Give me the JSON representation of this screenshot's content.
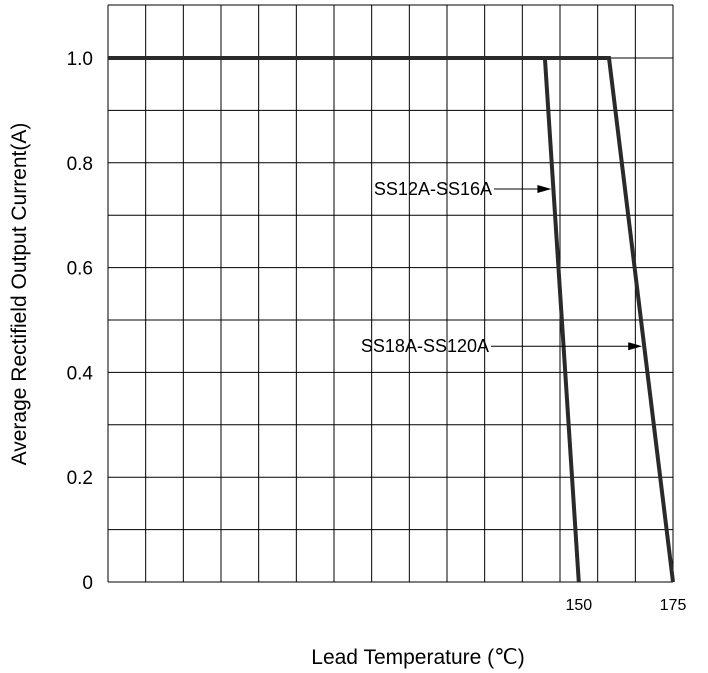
{
  "chart_data": {
    "type": "line",
    "title": "",
    "xlabel": "Lead Temperature (℃)",
    "ylabel": "Average Rectifield Output Current(A)",
    "xlim": [
      25,
      175
    ],
    "ylim": [
      0,
      1.0
    ],
    "grid": true,
    "x_ticks": [
      {
        "value": 150,
        "label": "150"
      },
      {
        "value": 175,
        "label": "175"
      }
    ],
    "y_ticks": [
      {
        "value": 0,
        "label": "0"
      },
      {
        "value": 0.2,
        "label": "0.2"
      },
      {
        "value": 0.4,
        "label": "0.4"
      },
      {
        "value": 0.6,
        "label": "0.6"
      },
      {
        "value": 0.8,
        "label": "0.8"
      },
      {
        "value": 1.0,
        "label": "1.0"
      }
    ],
    "series": [
      {
        "label": "SS12A-SS16A",
        "x": [
          25,
          141,
          150
        ],
        "y": [
          1.0,
          1.0,
          0
        ]
      },
      {
        "label": "SS18A-SS120A",
        "x": [
          25,
          158,
          175
        ],
        "y": [
          1.0,
          1.0,
          0
        ]
      }
    ],
    "annotations": [
      {
        "text": "SS12A-SS16A",
        "series": 0
      },
      {
        "text": "SS18A-SS120A",
        "series": 1
      }
    ],
    "colors": {
      "line": "#2a2a2a",
      "grid": "#000000",
      "text": "#000000"
    }
  }
}
